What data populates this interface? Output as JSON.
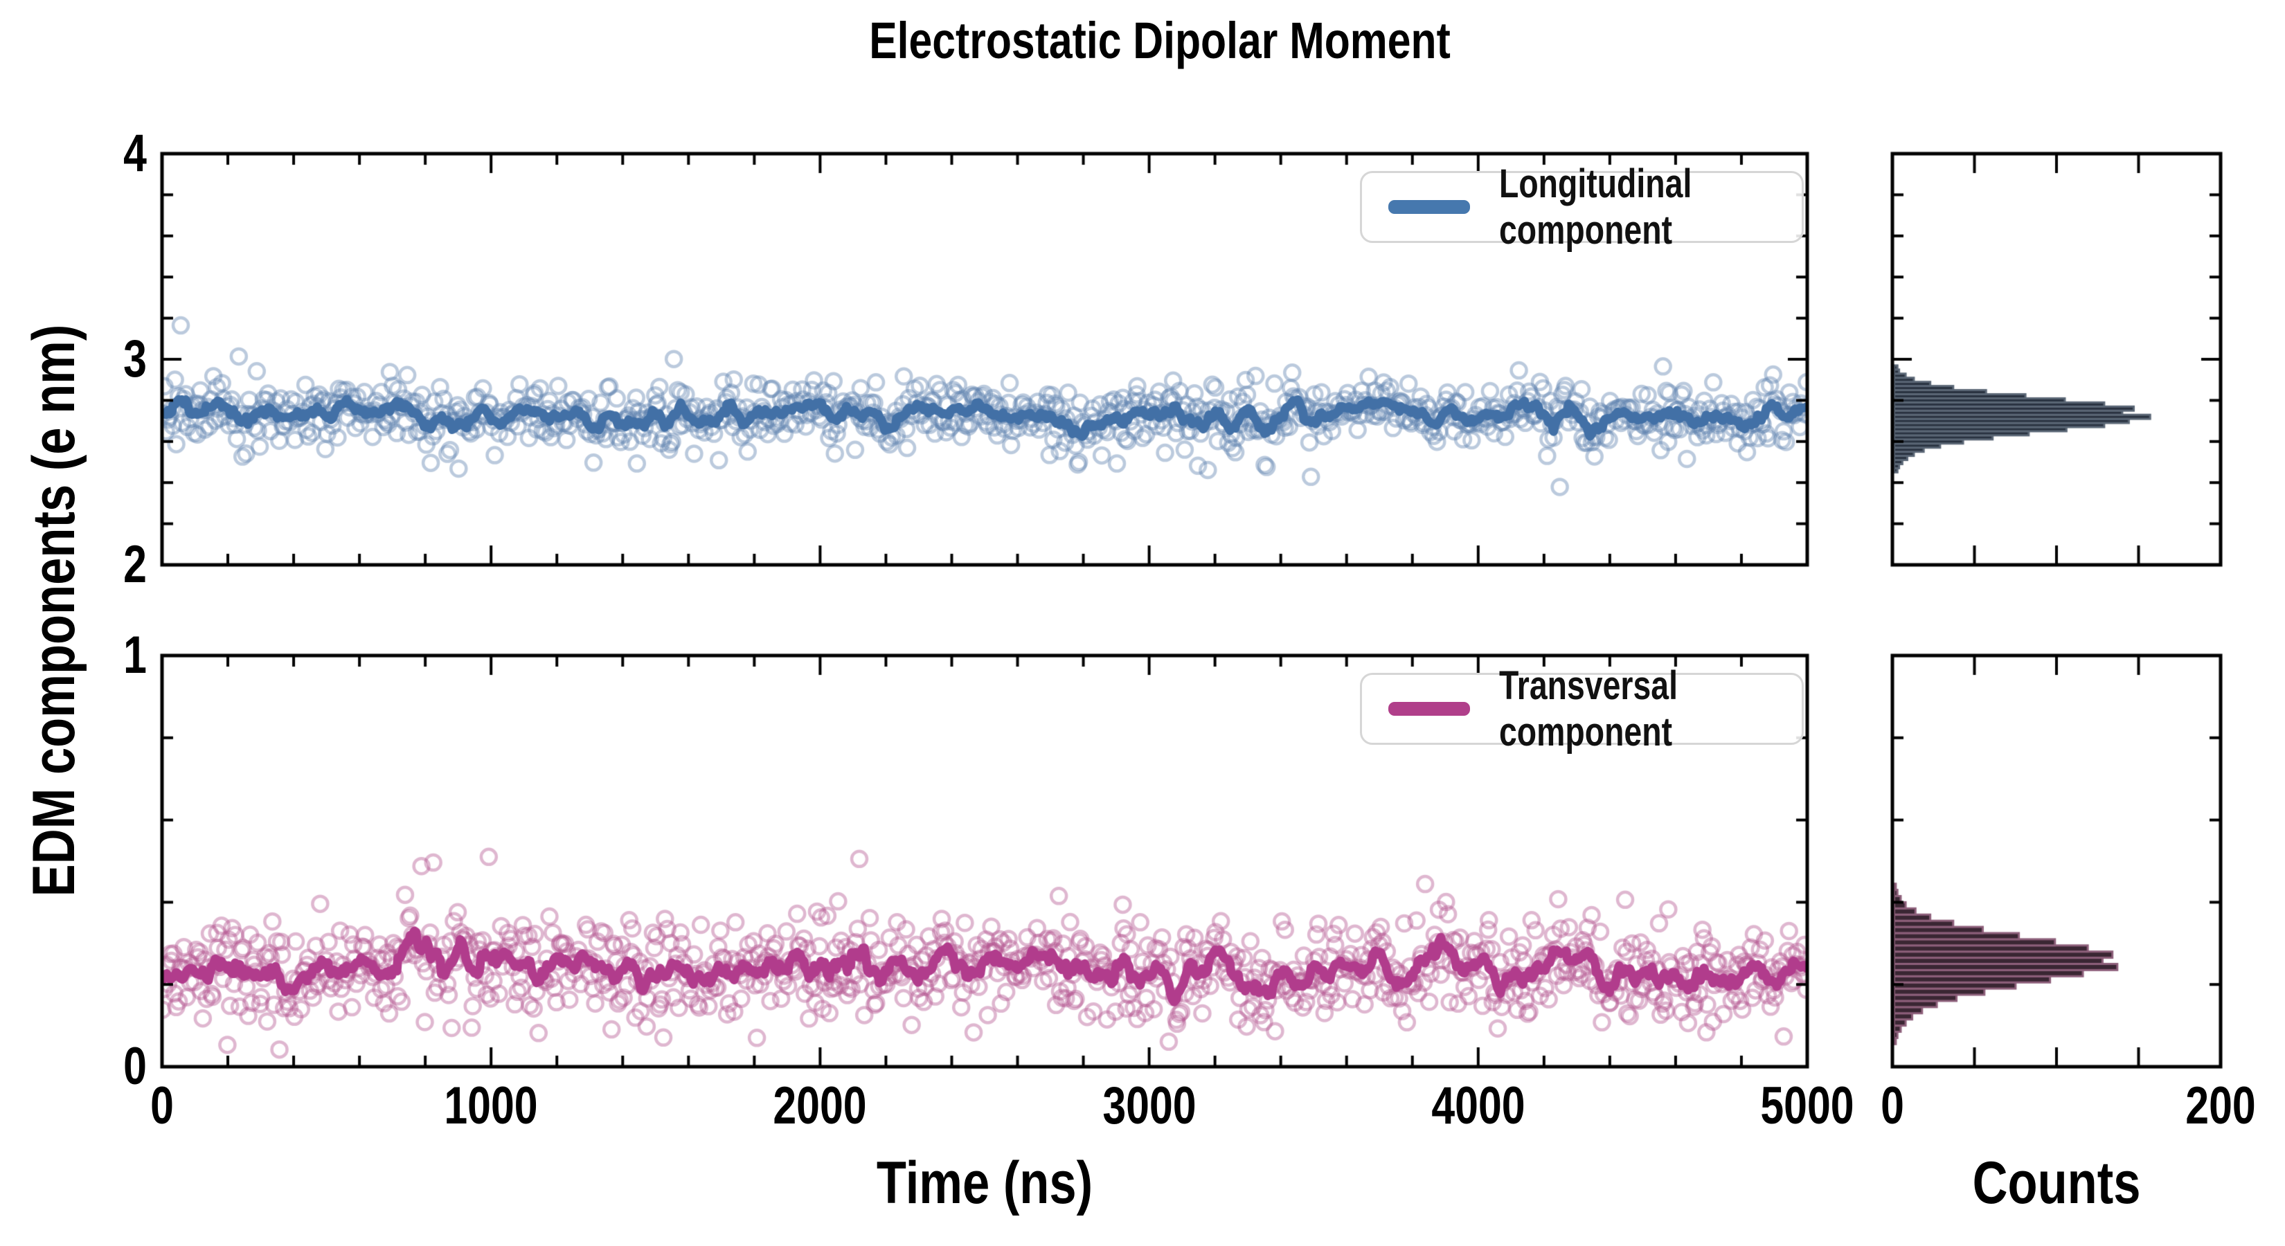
{
  "title": "Electrostatic Dipolar Moment",
  "axes": {
    "ylabel": "EDM components (e nm)",
    "xlabel_time": "Time (ns)",
    "xlabel_counts": "Counts"
  },
  "colors": {
    "longitudinal_line": "#4270a6",
    "longitudinal_marker": "rgba(92,129,175,0.42)",
    "longitudinal_legend": "#4678ae",
    "transversal_line": "#b13c8c",
    "transversal_marker": "rgba(178,84,142,0.42)",
    "transversal_legend": "#b03f8a",
    "hist_long_fill": "#28313f",
    "hist_long_edge": "#5a6675",
    "hist_trans_fill": "#3a2633",
    "hist_trans_edge": "#8d5f7a",
    "spine": "#000000"
  },
  "chart_data": [
    {
      "id": "longitudinal-timeseries",
      "type": "scatter",
      "legend": "Longitudinal component",
      "x_range": [
        0,
        5000
      ],
      "y_range": [
        2,
        4
      ],
      "x_ticks_major": [
        0,
        1000,
        2000,
        3000,
        4000,
        5000
      ],
      "x_tick_labels": [
        "0",
        "1000",
        "2000",
        "3000",
        "4000",
        "5000"
      ],
      "x_tick_minor_step": 200,
      "y_ticks_major": [
        2,
        3,
        4
      ],
      "y_tick_labels": [
        "2",
        "3",
        "4"
      ],
      "y_tick_minor_step": 0.2,
      "series_mean": 2.73,
      "series_spread": 0.08,
      "n_points": 950,
      "trend": "running-average line",
      "seed": 20240
    },
    {
      "id": "longitudinal-histogram",
      "type": "bar",
      "orientation": "horizontal",
      "x_range": [
        0,
        200
      ],
      "x_ticks": [
        0,
        50,
        100,
        150,
        200
      ],
      "x_tick_labels": [
        "0",
        "200"
      ],
      "bin_start": 2.45,
      "bin_width": 0.02,
      "counts": [
        2,
        3,
        5,
        8,
        12,
        18,
        28,
        42,
        60,
        82,
        105,
        128,
        143,
        156,
        139,
        146,
        128,
        104,
        80,
        56,
        36,
        22,
        12,
        7,
        3,
        2
      ]
    },
    {
      "id": "transversal-timeseries",
      "type": "scatter",
      "legend": "Transversal component",
      "x_range": [
        0,
        5000
      ],
      "y_range": [
        0,
        1
      ],
      "x_ticks_major": [
        0,
        1000,
        2000,
        3000,
        4000,
        5000
      ],
      "x_tick_labels": [
        "0",
        "1000",
        "2000",
        "3000",
        "4000",
        "5000"
      ],
      "x_tick_minor_step": 200,
      "y_ticks_major": [
        0,
        1
      ],
      "y_tick_labels": [
        "0",
        "1"
      ],
      "y_tick_minor_step": 0.2,
      "series_mean": 0.235,
      "series_spread": 0.062,
      "n_points": 950,
      "trend": "running-average line",
      "seed": 777
    },
    {
      "id": "transversal-histogram",
      "type": "bar",
      "orientation": "horizontal",
      "x_range": [
        0,
        200
      ],
      "x_ticks": [
        0,
        50,
        100,
        150,
        200
      ],
      "x_tick_labels": [
        "0",
        "200"
      ],
      "bin_start": 0.055,
      "bin_width": 0.015,
      "counts": [
        1,
        2,
        4,
        7,
        11,
        17,
        26,
        38,
        55,
        74,
        95,
        115,
        136,
        127,
        133,
        118,
        98,
        76,
        54,
        36,
        22,
        13,
        7,
        4,
        2,
        1
      ]
    }
  ]
}
